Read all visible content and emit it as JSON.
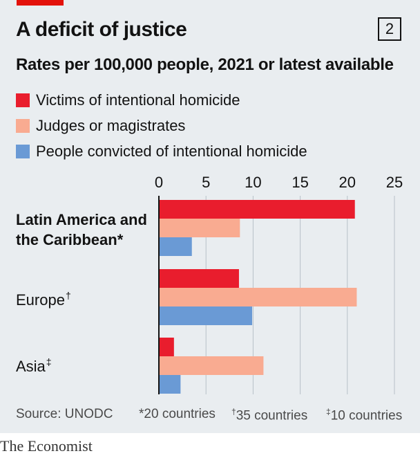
{
  "header": {
    "title": "A deficit of justice",
    "badge": "2",
    "subtitle": "Rates per 100,000 people, 2021 or latest available"
  },
  "legend": [
    {
      "label": "Victims of intentional homicide",
      "color": "#e91d2d"
    },
    {
      "label": "Judges or magistrates",
      "color": "#f9ab91"
    },
    {
      "label": "People convicted of intentional homicide",
      "color": "#6a9ad5"
    }
  ],
  "chart_data": {
    "type": "bar",
    "orientation": "horizontal",
    "categories": [
      "Latin America and the Caribbean*",
      "Europe†",
      "Asia‡"
    ],
    "series": [
      {
        "name": "Victims of intentional homicide",
        "values": [
          20.8,
          8.5,
          1.6
        ],
        "color": "#e91d2d"
      },
      {
        "name": "Judges or magistrates",
        "values": [
          8.6,
          21.0,
          11.1
        ],
        "color": "#f9ab91"
      },
      {
        "name": "People convicted of intentional homicide",
        "values": [
          3.5,
          9.9,
          2.3
        ],
        "color": "#6a9ad5"
      }
    ],
    "xlim": [
      0,
      25
    ],
    "xticks": [
      0,
      5,
      10,
      15,
      20,
      25
    ],
    "grid": true,
    "tick_position": "top"
  },
  "categories_display": [
    {
      "lines": [
        "Latin America and",
        "the Caribbean*"
      ],
      "bold": true
    },
    {
      "lines": [
        "Europe"
      ],
      "mark": "†",
      "bold": false
    },
    {
      "lines": [
        "Asia"
      ],
      "mark": "‡",
      "bold": false
    }
  ],
  "footer": {
    "source": "Source: UNODC",
    "notes": [
      {
        "mark": "*",
        "text": "20 countries"
      },
      {
        "mark": "†",
        "text": "35 countries"
      },
      {
        "mark": "‡",
        "text": "10 countries"
      }
    ],
    "brand": "The Economist"
  }
}
